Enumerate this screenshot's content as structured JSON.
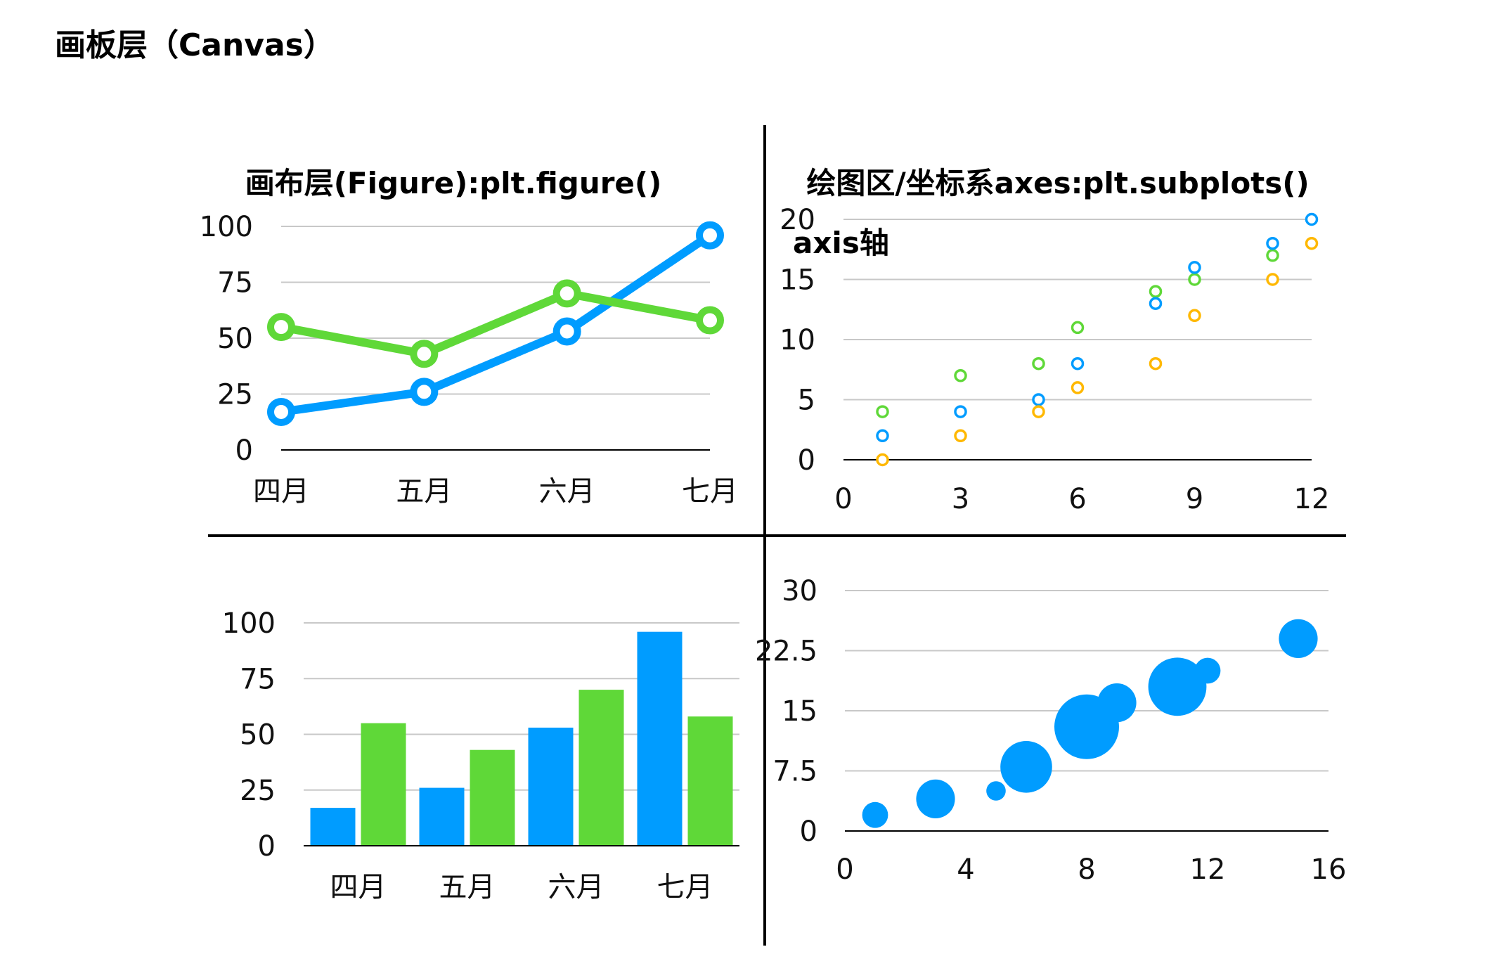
{
  "canvas_title": "画板层（Canvas）",
  "colors": {
    "blue": "#009CFF",
    "green": "#5FD838",
    "orange": "#FFB800"
  },
  "chart_data": [
    {
      "type": "line",
      "title": "画布层(Figure):plt.figure()",
      "categories": [
        "四月",
        "五月",
        "六月",
        "七月"
      ],
      "yticks": [
        "0",
        "25",
        "50",
        "75",
        "100"
      ],
      "ylim": [
        0,
        100
      ],
      "grid": true,
      "series": [
        {
          "color": "blue",
          "values": [
            17,
            26,
            53,
            96
          ]
        },
        {
          "color": "green",
          "values": [
            55,
            43,
            70,
            58
          ]
        }
      ]
    },
    {
      "type": "scatter",
      "title": "绘图区/坐标系axes:plt.subplots()",
      "annotation": "axis轴",
      "xticks": [
        "0",
        "3",
        "6",
        "9",
        "12"
      ],
      "yticks": [
        "0",
        "5",
        "10",
        "15",
        "20"
      ],
      "xlim": [
        0,
        12
      ],
      "ylim": [
        0,
        20
      ],
      "grid": true,
      "series": [
        {
          "color": "green",
          "x": [
            1,
            3,
            5,
            6,
            8,
            9,
            11
          ],
          "y": [
            4,
            7,
            8,
            11,
            14,
            15,
            17
          ]
        },
        {
          "color": "blue",
          "x": [
            1,
            3,
            5,
            6,
            8,
            9,
            11,
            12
          ],
          "y": [
            2,
            4,
            5,
            8,
            13,
            16,
            18,
            20
          ]
        },
        {
          "color": "orange",
          "x": [
            1,
            3,
            5,
            6,
            8,
            9,
            11,
            12
          ],
          "y": [
            0,
            2,
            4,
            6,
            8,
            12,
            15,
            18
          ]
        }
      ]
    },
    {
      "type": "bar",
      "categories": [
        "四月",
        "五月",
        "六月",
        "七月"
      ],
      "yticks": [
        "0",
        "25",
        "50",
        "75",
        "100"
      ],
      "ylim": [
        0,
        100
      ],
      "grid": true,
      "series": [
        {
          "color": "blue",
          "values": [
            17,
            26,
            53,
            96
          ]
        },
        {
          "color": "green",
          "values": [
            55,
            43,
            70,
            58
          ]
        }
      ]
    },
    {
      "type": "scatter",
      "subtype": "bubble",
      "xticks": [
        "0",
        "4",
        "8",
        "12",
        "16"
      ],
      "yticks": [
        "0",
        "7.5",
        "15",
        "22.5",
        "30"
      ],
      "xlim": [
        0,
        16
      ],
      "ylim": [
        0,
        30
      ],
      "grid": true,
      "series": [
        {
          "color": "blue",
          "x": [
            1,
            3,
            5,
            6,
            8,
            9,
            11,
            12,
            15
          ],
          "y": [
            2,
            4,
            5,
            8,
            13,
            16,
            18,
            20,
            24
          ],
          "size": [
            4,
            6,
            3,
            8,
            10,
            6,
            9,
            4,
            6
          ]
        }
      ]
    }
  ]
}
